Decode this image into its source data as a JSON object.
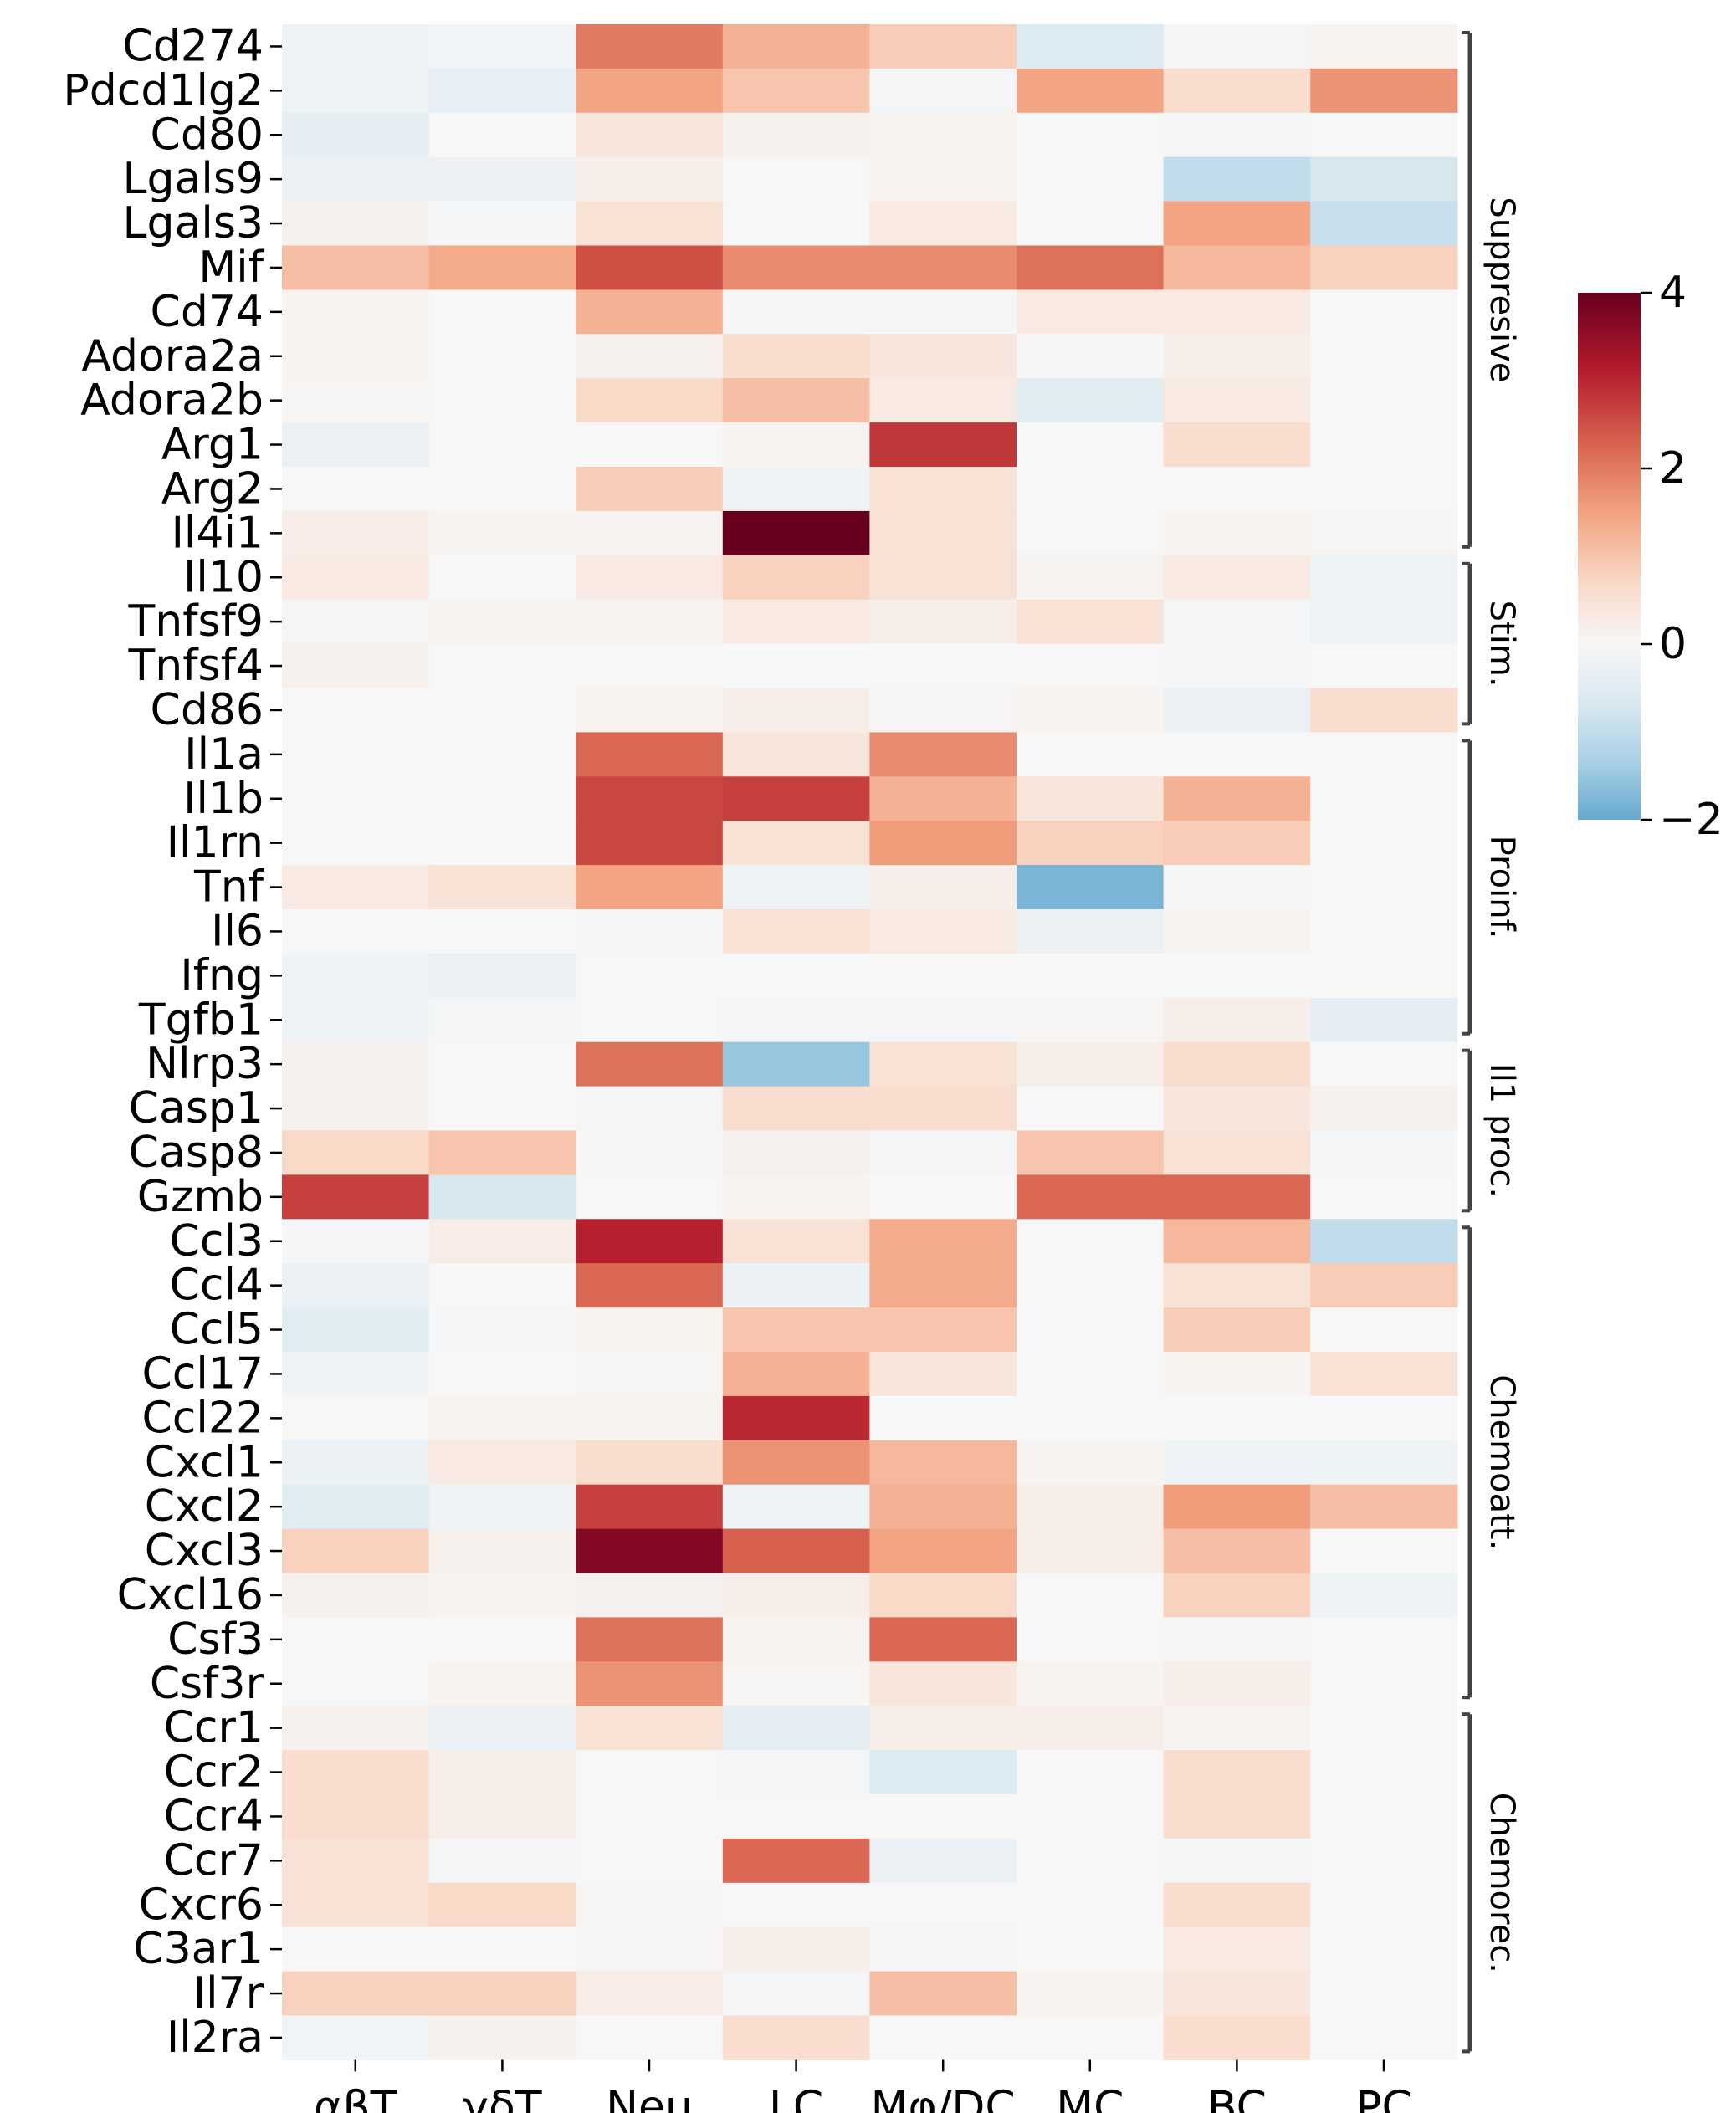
{
  "chart_data": {
    "type": "heatmap",
    "title": "",
    "xlabel": "",
    "ylabel": "",
    "colormap": "RdBu_r",
    "color_range": [
      -2,
      4
    ],
    "color_center": 0,
    "columns": [
      "αβT",
      "γδT",
      "Neu",
      "LC",
      "Mφ/DC",
      "MC",
      "BC",
      "PC"
    ],
    "rows": [
      "Cd274",
      "Pdcd1lg2",
      "Cd80",
      "Lgals9",
      "Lgals3",
      "Mif",
      "Cd74",
      "Adora2a",
      "Adora2b",
      "Arg1",
      "Arg2",
      "Il4i1",
      "Il10",
      "Tnfsf9",
      "Tnfsf4",
      "Cd86",
      "Il1a",
      "Il1b",
      "Il1rn",
      "Tnf",
      "Il6",
      "Ifng",
      "Tgfb1",
      "Nlrp3",
      "Casp1",
      "Casp8",
      "Gzmb",
      "Ccl3",
      "Ccl4",
      "Ccl5",
      "Ccl17",
      "Ccl22",
      "Cxcl1",
      "Cxcl2",
      "Cxcl3",
      "Cxcl16",
      "Csf3",
      "Csf3r",
      "Ccr1",
      "Ccr2",
      "Ccr4",
      "Ccr7",
      "Cxcr6",
      "C3ar1",
      "Il7r",
      "Il2ra"
    ],
    "values": [
      [
        -0.2,
        -0.15,
        2.0,
        1.3,
        0.9,
        -0.6,
        -0.1,
        0.1
      ],
      [
        -0.2,
        -0.35,
        1.5,
        1.0,
        -0.1,
        1.5,
        0.6,
        1.7
      ],
      [
        -0.4,
        0.0,
        0.4,
        0.15,
        0.1,
        0.0,
        -0.1,
        0.0
      ],
      [
        -0.25,
        -0.25,
        0.2,
        0.0,
        0.1,
        0.0,
        -1.0,
        -0.7
      ],
      [
        0.15,
        -0.05,
        0.5,
        0.0,
        0.3,
        0.0,
        1.5,
        -0.9
      ],
      [
        1.1,
        1.4,
        2.5,
        1.8,
        1.8,
        2.1,
        1.2,
        0.8
      ],
      [
        0.1,
        0.0,
        1.3,
        -0.05,
        -0.05,
        0.3,
        0.3,
        0.0
      ],
      [
        0.1,
        0.0,
        0.15,
        0.6,
        0.4,
        -0.05,
        0.2,
        0.0
      ],
      [
        0.05,
        0.0,
        0.7,
        1.1,
        0.3,
        -0.5,
        0.3,
        0.0
      ],
      [
        -0.3,
        0.0,
        0.0,
        0.1,
        2.8,
        0.0,
        0.6,
        0.0
      ],
      [
        0.0,
        0.0,
        0.9,
        -0.2,
        0.5,
        0.0,
        0.0,
        0.0
      ],
      [
        0.25,
        0.1,
        0.1,
        4.0,
        0.5,
        0.0,
        0.1,
        0.05
      ],
      [
        0.3,
        0.0,
        0.3,
        0.8,
        0.5,
        0.1,
        0.3,
        -0.2
      ],
      [
        -0.1,
        0.1,
        0.1,
        0.3,
        0.2,
        0.5,
        -0.1,
        -0.2
      ],
      [
        0.15,
        0.0,
        0.0,
        0.0,
        0.0,
        0.0,
        -0.1,
        0.0
      ],
      [
        0.0,
        0.0,
        0.1,
        0.2,
        0.05,
        0.1,
        -0.3,
        0.6
      ],
      [
        0.0,
        0.0,
        2.2,
        0.4,
        1.8,
        0.0,
        0.0,
        0.0
      ],
      [
        0.0,
        0.0,
        2.6,
        2.7,
        1.3,
        0.4,
        1.3,
        0.0
      ],
      [
        0.0,
        0.0,
        2.6,
        0.5,
        1.6,
        0.8,
        0.9,
        0.0
      ],
      [
        0.3,
        0.5,
        1.5,
        -0.2,
        0.2,
        -1.8,
        -0.05,
        0.0
      ],
      [
        0.0,
        0.0,
        -0.05,
        0.5,
        0.3,
        -0.3,
        0.1,
        0.0
      ],
      [
        -0.2,
        -0.3,
        0.0,
        0.0,
        0.0,
        0.0,
        0.0,
        0.0
      ],
      [
        -0.2,
        -0.1,
        0.0,
        -0.1,
        -0.1,
        0.05,
        0.2,
        -0.4
      ],
      [
        0.15,
        0.0,
        2.1,
        -1.5,
        0.5,
        0.2,
        0.6,
        0.0
      ],
      [
        0.15,
        0.0,
        -0.1,
        0.6,
        0.6,
        0.0,
        0.4,
        0.15
      ],
      [
        0.7,
        1.0,
        -0.05,
        0.15,
        -0.1,
        1.0,
        0.5,
        -0.05
      ],
      [
        2.7,
        -0.7,
        0.0,
        0.1,
        0.0,
        2.2,
        2.2,
        0.0
      ],
      [
        -0.05,
        0.25,
        3.1,
        0.5,
        1.4,
        0.0,
        1.2,
        -1.0
      ],
      [
        -0.3,
        0.0,
        2.2,
        -0.25,
        1.4,
        0.0,
        0.5,
        0.9
      ],
      [
        -0.5,
        -0.05,
        0.1,
        1.0,
        1.0,
        0.0,
        0.9,
        0.0
      ],
      [
        -0.2,
        0.0,
        0.05,
        1.3,
        0.4,
        0.0,
        0.1,
        0.5
      ],
      [
        0.0,
        0.1,
        0.1,
        3.0,
        0.0,
        0.0,
        0.0,
        0.0
      ],
      [
        -0.25,
        0.3,
        0.6,
        1.7,
        1.2,
        0.1,
        -0.2,
        -0.2
      ],
      [
        -0.5,
        -0.2,
        2.7,
        -0.2,
        1.3,
        0.2,
        1.6,
        1.1
      ],
      [
        0.8,
        0.15,
        3.7,
        2.3,
        1.5,
        0.2,
        1.1,
        0.0
      ],
      [
        0.15,
        0.1,
        0.15,
        0.2,
        0.7,
        0.0,
        0.8,
        -0.2
      ],
      [
        0.0,
        0.0,
        2.1,
        0.1,
        2.2,
        0.0,
        -0.05,
        0.0
      ],
      [
        0.0,
        0.1,
        1.7,
        0.05,
        0.4,
        0.1,
        0.2,
        0.0
      ],
      [
        0.15,
        -0.3,
        0.5,
        -0.4,
        0.2,
        0.2,
        0.1,
        0.0
      ],
      [
        0.6,
        0.2,
        0.0,
        -0.1,
        -0.6,
        0.0,
        0.6,
        0.0
      ],
      [
        0.6,
        0.2,
        0.0,
        0.0,
        0.0,
        0.0,
        0.6,
        0.0
      ],
      [
        0.5,
        -0.1,
        0.0,
        2.2,
        -0.25,
        0.0,
        -0.1,
        0.0
      ],
      [
        0.5,
        0.7,
        0.05,
        0.0,
        0.0,
        0.0,
        0.6,
        0.0
      ],
      [
        0.0,
        0.0,
        0.05,
        0.2,
        -0.1,
        0.0,
        0.3,
        0.0
      ],
      [
        0.8,
        0.8,
        0.25,
        -0.1,
        1.1,
        0.1,
        0.4,
        0.0
      ],
      [
        -0.15,
        0.15,
        0.0,
        0.6,
        0.0,
        0.0,
        0.6,
        0.0
      ]
    ],
    "row_groups": [
      {
        "label": "Suppresive",
        "start": 0,
        "end": 11
      },
      {
        "label": "Stim.",
        "start": 12,
        "end": 15
      },
      {
        "label": "Proinf.",
        "start": 16,
        "end": 22
      },
      {
        "label": "Il1 proc.",
        "start": 23,
        "end": 26
      },
      {
        "label": "Chemoatt.",
        "start": 27,
        "end": 37
      },
      {
        "label": "Chemorec.",
        "start": 38,
        "end": 45
      }
    ],
    "colorbar": {
      "ticks": [
        -2,
        0,
        2,
        4
      ],
      "tick_labels": [
        "−2",
        "0",
        "2",
        "4"
      ]
    }
  }
}
